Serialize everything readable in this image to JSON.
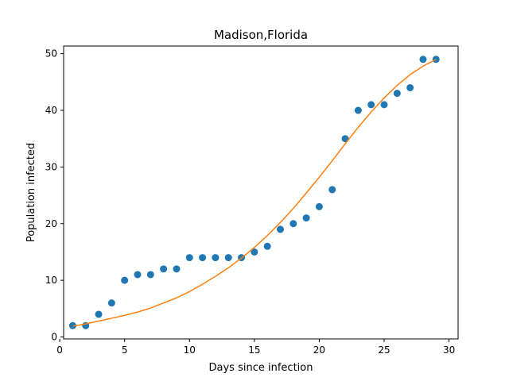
{
  "chart_data": {
    "type": "scatter",
    "title": "Madison,Florida",
    "xlabel": "Days since infection",
    "ylabel": "Population infected",
    "xlim": [
      0.3,
      30.7
    ],
    "ylim": [
      -0.35,
      51.35
    ],
    "xticks": [
      0,
      5,
      10,
      15,
      20,
      25,
      30
    ],
    "yticks": [
      0,
      10,
      20,
      30,
      40,
      50
    ],
    "grid": false,
    "series": [
      {
        "kind": "scatter",
        "color": "#1f77b4",
        "x": [
          1,
          2,
          3,
          4,
          5,
          6,
          7,
          8,
          9,
          10,
          11,
          12,
          13,
          14,
          15,
          16,
          17,
          18,
          19,
          20,
          21,
          22,
          23,
          24,
          25,
          26,
          27,
          28,
          29
        ],
        "y": [
          2,
          2,
          4,
          6,
          10,
          11,
          11,
          12,
          12,
          14,
          14,
          14,
          14,
          14,
          15,
          16,
          19,
          20,
          21,
          23,
          26,
          35,
          40,
          41,
          41,
          43,
          44,
          49,
          49
        ]
      },
      {
        "kind": "line",
        "color": "#ff7f0e",
        "x": [
          1,
          2,
          3,
          4,
          5,
          6,
          7,
          8,
          9,
          10,
          11,
          12,
          13,
          14,
          15,
          16,
          17,
          18,
          19,
          20,
          21,
          22,
          23,
          24,
          25,
          26,
          27,
          28,
          29
        ],
        "y": [
          1.9,
          2.3,
          2.8,
          3.3,
          3.8,
          4.4,
          5.1,
          6.0,
          6.9,
          8.0,
          9.3,
          10.7,
          12.2,
          13.9,
          15.8,
          17.9,
          20.2,
          22.7,
          25.4,
          28.2,
          31.1,
          34.1,
          37.0,
          39.7,
          42.2,
          44.4,
          46.3,
          47.8,
          49.0
        ]
      }
    ]
  }
}
